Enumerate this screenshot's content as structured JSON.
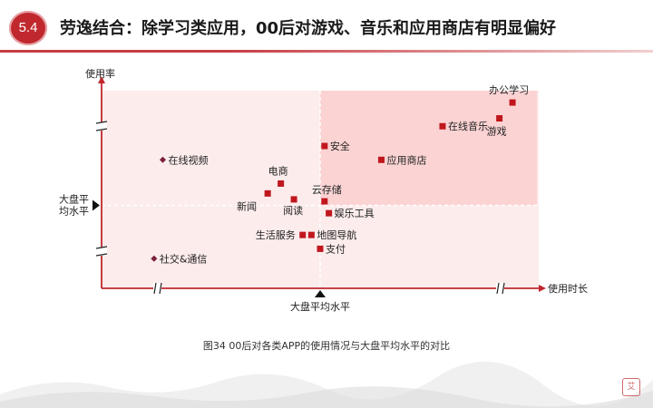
{
  "header": {
    "section_number": "5.4",
    "title": "劳逸结合：除学习类应用，00后对游戏、音乐和应用商店有明显偏好"
  },
  "colors": {
    "accent": "#c0282e",
    "quadrant_light": "#fcecec",
    "quadrant_strong": "#fbd3d3",
    "marker": "#c0171d",
    "axis": "#c0282e"
  },
  "chart_data": {
    "type": "scatter",
    "xlabel": "使用时长",
    "ylabel": "使用率",
    "x_reference_label": "大盘平均水平",
    "y_reference_label": [
      "大盘平",
      "均水平"
    ],
    "axis_breaks": true,
    "points": [
      {
        "label": "办公学习",
        "x": 0.94,
        "y": 0.94,
        "marker": "square"
      },
      {
        "label": "游戏",
        "x": 0.91,
        "y": 0.86,
        "marker": "square"
      },
      {
        "label": "在线音乐",
        "x": 0.78,
        "y": 0.82,
        "marker": "square"
      },
      {
        "label": "安全",
        "x": 0.51,
        "y": 0.72,
        "marker": "square"
      },
      {
        "label": "应用商店",
        "x": 0.64,
        "y": 0.65,
        "marker": "square"
      },
      {
        "label": "在线视频",
        "x": 0.14,
        "y": 0.65,
        "marker": "diamond"
      },
      {
        "label": "电商",
        "x": 0.41,
        "y": 0.53,
        "marker": "square"
      },
      {
        "label": "新闻",
        "x": 0.38,
        "y": 0.48,
        "marker": "square"
      },
      {
        "label": "阅读",
        "x": 0.44,
        "y": 0.45,
        "marker": "square"
      },
      {
        "label": "云存储",
        "x": 0.51,
        "y": 0.44,
        "marker": "square"
      },
      {
        "label": "娱乐工具",
        "x": 0.52,
        "y": 0.38,
        "marker": "square"
      },
      {
        "label": "生活服务",
        "x": 0.46,
        "y": 0.27,
        "marker": "square"
      },
      {
        "label": "地图导航",
        "x": 0.48,
        "y": 0.27,
        "marker": "square"
      },
      {
        "label": "支付",
        "x": 0.5,
        "y": 0.2,
        "marker": "square"
      },
      {
        "label": "社交&通信",
        "x": 0.12,
        "y": 0.15,
        "marker": "diamond"
      }
    ],
    "reference": {
      "x": 0.5,
      "y": 0.42
    },
    "xlim": [
      0,
      1
    ],
    "ylim": [
      0,
      1
    ]
  },
  "caption": "图34 00后对各类APP的使用情况与大盘平均水平的对比",
  "seal_text": "艾"
}
